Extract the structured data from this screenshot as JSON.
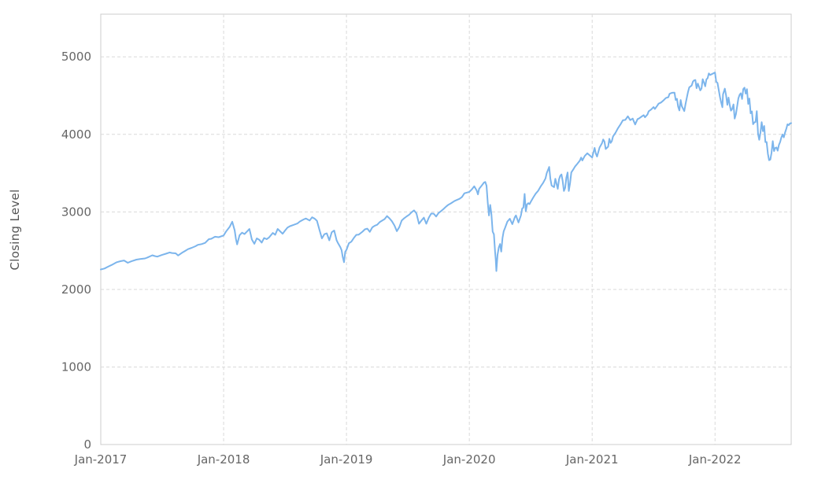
{
  "chart_data": {
    "type": "line",
    "title": "",
    "xlabel": "",
    "ylabel": "Closing Level",
    "legend": "none",
    "grid": "dashed",
    "line_color": "#7cb5ec",
    "axis_text_color": "#666666",
    "grid_color": "#d9d9d9",
    "border_color": "#cccccc",
    "xlim": [
      2017.0,
      2022.62
    ],
    "ylim": [
      0,
      5550
    ],
    "x_tick_values": [
      2017,
      2018,
      2019,
      2020,
      2021,
      2022
    ],
    "x_tick_labels": [
      "Jan-2017",
      "Jan-2018",
      "Jan-2019",
      "Jan-2020",
      "Jan-2021",
      "Jan-2022"
    ],
    "y_tick_values": [
      0,
      1000,
      2000,
      3000,
      4000,
      5000
    ],
    "y_tick_labels": [
      "0",
      "1000",
      "2000",
      "3000",
      "4000",
      "5000"
    ],
    "points": [
      [
        2017.0,
        2258
      ],
      [
        2017.03,
        2270
      ],
      [
        2017.06,
        2294
      ],
      [
        2017.09,
        2316
      ],
      [
        2017.13,
        2351
      ],
      [
        2017.16,
        2364
      ],
      [
        2017.19,
        2373
      ],
      [
        2017.22,
        2344
      ],
      [
        2017.25,
        2363
      ],
      [
        2017.29,
        2384
      ],
      [
        2017.32,
        2391
      ],
      [
        2017.36,
        2400
      ],
      [
        2017.38,
        2412
      ],
      [
        2017.42,
        2440
      ],
      [
        2017.44,
        2430
      ],
      [
        2017.46,
        2423
      ],
      [
        2017.5,
        2446
      ],
      [
        2017.53,
        2460
      ],
      [
        2017.56,
        2477
      ],
      [
        2017.58,
        2470
      ],
      [
        2017.61,
        2466
      ],
      [
        2017.63,
        2438
      ],
      [
        2017.66,
        2472
      ],
      [
        2017.69,
        2500
      ],
      [
        2017.71,
        2519
      ],
      [
        2017.74,
        2537
      ],
      [
        2017.77,
        2557
      ],
      [
        2017.79,
        2575
      ],
      [
        2017.82,
        2584
      ],
      [
        2017.85,
        2600
      ],
      [
        2017.88,
        2648
      ],
      [
        2017.9,
        2653
      ],
      [
        2017.93,
        2680
      ],
      [
        2017.96,
        2674
      ],
      [
        2018.0,
        2696
      ],
      [
        2018.02,
        2748
      ],
      [
        2018.05,
        2810
      ],
      [
        2018.07,
        2873
      ],
      [
        2018.09,
        2762
      ],
      [
        2018.1,
        2650
      ],
      [
        2018.11,
        2581
      ],
      [
        2018.13,
        2699
      ],
      [
        2018.15,
        2732
      ],
      [
        2018.17,
        2714
      ],
      [
        2018.19,
        2747
      ],
      [
        2018.21,
        2780
      ],
      [
        2018.22,
        2712
      ],
      [
        2018.23,
        2644
      ],
      [
        2018.25,
        2588
      ],
      [
        2018.27,
        2658
      ],
      [
        2018.29,
        2641
      ],
      [
        2018.31,
        2604
      ],
      [
        2018.33,
        2663
      ],
      [
        2018.35,
        2648
      ],
      [
        2018.37,
        2670
      ],
      [
        2018.4,
        2728
      ],
      [
        2018.42,
        2705
      ],
      [
        2018.44,
        2780
      ],
      [
        2018.46,
        2750
      ],
      [
        2018.48,
        2718
      ],
      [
        2018.5,
        2760
      ],
      [
        2018.52,
        2798
      ],
      [
        2018.54,
        2816
      ],
      [
        2018.57,
        2833
      ],
      [
        2018.6,
        2850
      ],
      [
        2018.62,
        2875
      ],
      [
        2018.65,
        2902
      ],
      [
        2018.67,
        2915
      ],
      [
        2018.7,
        2889
      ],
      [
        2018.72,
        2930
      ],
      [
        2018.74,
        2914
      ],
      [
        2018.76,
        2886
      ],
      [
        2018.78,
        2768
      ],
      [
        2018.8,
        2658
      ],
      [
        2018.82,
        2712
      ],
      [
        2018.84,
        2723
      ],
      [
        2018.86,
        2633
      ],
      [
        2018.88,
        2737
      ],
      [
        2018.9,
        2760
      ],
      [
        2018.92,
        2633
      ],
      [
        2018.93,
        2600
      ],
      [
        2018.95,
        2546
      ],
      [
        2018.96,
        2506
      ],
      [
        2018.97,
        2416
      ],
      [
        2018.98,
        2351
      ],
      [
        2018.99,
        2486
      ],
      [
        2019.0,
        2510
      ],
      [
        2019.02,
        2596
      ],
      [
        2019.04,
        2616
      ],
      [
        2019.06,
        2664
      ],
      [
        2019.08,
        2704
      ],
      [
        2019.1,
        2707
      ],
      [
        2019.13,
        2745
      ],
      [
        2019.15,
        2775
      ],
      [
        2019.17,
        2784
      ],
      [
        2019.19,
        2743
      ],
      [
        2019.21,
        2800
      ],
      [
        2019.23,
        2822
      ],
      [
        2019.25,
        2834
      ],
      [
        2019.27,
        2867
      ],
      [
        2019.29,
        2888
      ],
      [
        2019.31,
        2907
      ],
      [
        2019.33,
        2946
      ],
      [
        2019.35,
        2917
      ],
      [
        2019.37,
        2880
      ],
      [
        2019.39,
        2826
      ],
      [
        2019.41,
        2752
      ],
      [
        2019.43,
        2803
      ],
      [
        2019.45,
        2890
      ],
      [
        2019.47,
        2918
      ],
      [
        2019.49,
        2942
      ],
      [
        2019.51,
        2964
      ],
      [
        2019.53,
        2995
      ],
      [
        2019.55,
        3020
      ],
      [
        2019.57,
        2980
      ],
      [
        2019.59,
        2847
      ],
      [
        2019.61,
        2889
      ],
      [
        2019.63,
        2926
      ],
      [
        2019.65,
        2847
      ],
      [
        2019.67,
        2926
      ],
      [
        2019.69,
        2979
      ],
      [
        2019.71,
        2977
      ],
      [
        2019.73,
        2940
      ],
      [
        2019.75,
        2986
      ],
      [
        2019.77,
        3010
      ],
      [
        2019.79,
        3038
      ],
      [
        2019.81,
        3067
      ],
      [
        2019.83,
        3093
      ],
      [
        2019.85,
        3110
      ],
      [
        2019.88,
        3141
      ],
      [
        2019.9,
        3154
      ],
      [
        2019.92,
        3169
      ],
      [
        2019.94,
        3192
      ],
      [
        2019.96,
        3240
      ],
      [
        2020.0,
        3258
      ],
      [
        2020.02,
        3289
      ],
      [
        2020.04,
        3330
      ],
      [
        2020.06,
        3276
      ],
      [
        2020.07,
        3226
      ],
      [
        2020.08,
        3298
      ],
      [
        2020.1,
        3338
      ],
      [
        2020.12,
        3380
      ],
      [
        2020.13,
        3386
      ],
      [
        2020.14,
        3338
      ],
      [
        2020.15,
        3116
      ],
      [
        2020.16,
        2954
      ],
      [
        2020.17,
        3090
      ],
      [
        2020.18,
        2972
      ],
      [
        2020.19,
        2746
      ],
      [
        2020.2,
        2711
      ],
      [
        2020.21,
        2480
      ],
      [
        2020.215,
        2386
      ],
      [
        2020.22,
        2237
      ],
      [
        2020.23,
        2447
      ],
      [
        2020.24,
        2542
      ],
      [
        2020.25,
        2585
      ],
      [
        2020.26,
        2488
      ],
      [
        2020.27,
        2663
      ],
      [
        2020.28,
        2750
      ],
      [
        2020.29,
        2790
      ],
      [
        2020.31,
        2875
      ],
      [
        2020.33,
        2912
      ],
      [
        2020.35,
        2842
      ],
      [
        2020.37,
        2930
      ],
      [
        2020.38,
        2955
      ],
      [
        2020.4,
        2863
      ],
      [
        2020.42,
        2955
      ],
      [
        2020.43,
        3044
      ],
      [
        2020.44,
        3055
      ],
      [
        2020.45,
        3232
      ],
      [
        2020.46,
        3009
      ],
      [
        2020.47,
        3098
      ],
      [
        2020.48,
        3113
      ],
      [
        2020.49,
        3100
      ],
      [
        2020.5,
        3130
      ],
      [
        2020.52,
        3185
      ],
      [
        2020.54,
        3235
      ],
      [
        2020.56,
        3271
      ],
      [
        2020.58,
        3327
      ],
      [
        2020.6,
        3373
      ],
      [
        2020.62,
        3431
      ],
      [
        2020.63,
        3500
      ],
      [
        2020.65,
        3580
      ],
      [
        2020.66,
        3427
      ],
      [
        2020.67,
        3340
      ],
      [
        2020.69,
        3319
      ],
      [
        2020.7,
        3427
      ],
      [
        2020.71,
        3363
      ],
      [
        2020.72,
        3298
      ],
      [
        2020.73,
        3419
      ],
      [
        2020.74,
        3465
      ],
      [
        2020.75,
        3483
      ],
      [
        2020.76,
        3400
      ],
      [
        2020.77,
        3270
      ],
      [
        2020.78,
        3310
      ],
      [
        2020.79,
        3443
      ],
      [
        2020.8,
        3509
      ],
      [
        2020.81,
        3270
      ],
      [
        2020.82,
        3369
      ],
      [
        2020.83,
        3509
      ],
      [
        2020.85,
        3557
      ],
      [
        2020.86,
        3585
      ],
      [
        2020.88,
        3622
      ],
      [
        2020.9,
        3663
      ],
      [
        2020.91,
        3700
      ],
      [
        2020.92,
        3663
      ],
      [
        2020.94,
        3722
      ],
      [
        2020.96,
        3756
      ],
      [
        2021.0,
        3701
      ],
      [
        2021.01,
        3768
      ],
      [
        2021.02,
        3825
      ],
      [
        2021.03,
        3750
      ],
      [
        2021.04,
        3714
      ],
      [
        2021.06,
        3830
      ],
      [
        2021.08,
        3886
      ],
      [
        2021.09,
        3934
      ],
      [
        2021.1,
        3906
      ],
      [
        2021.11,
        3811
      ],
      [
        2021.13,
        3841
      ],
      [
        2021.14,
        3943
      ],
      [
        2021.15,
        3889
      ],
      [
        2021.16,
        3913
      ],
      [
        2021.17,
        3973
      ],
      [
        2021.19,
        4020
      ],
      [
        2021.21,
        4080
      ],
      [
        2021.23,
        4128
      ],
      [
        2021.25,
        4181
      ],
      [
        2021.27,
        4186
      ],
      [
        2021.29,
        4233
      ],
      [
        2021.31,
        4183
      ],
      [
        2021.33,
        4204
      ],
      [
        2021.34,
        4163
      ],
      [
        2021.35,
        4127
      ],
      [
        2021.37,
        4197
      ],
      [
        2021.38,
        4204
      ],
      [
        2021.4,
        4227
      ],
      [
        2021.42,
        4247
      ],
      [
        2021.43,
        4220
      ],
      [
        2021.45,
        4255
      ],
      [
        2021.46,
        4298
      ],
      [
        2021.48,
        4320
      ],
      [
        2021.5,
        4352
      ],
      [
        2021.51,
        4327
      ],
      [
        2021.53,
        4370
      ],
      [
        2021.54,
        4395
      ],
      [
        2021.56,
        4411
      ],
      [
        2021.58,
        4437
      ],
      [
        2021.6,
        4468
      ],
      [
        2021.62,
        4480
      ],
      [
        2021.63,
        4523
      ],
      [
        2021.65,
        4536
      ],
      [
        2021.67,
        4537
      ],
      [
        2021.68,
        4443
      ],
      [
        2021.69,
        4458
      ],
      [
        2021.7,
        4357
      ],
      [
        2021.71,
        4308
      ],
      [
        2021.72,
        4443
      ],
      [
        2021.73,
        4363
      ],
      [
        2021.75,
        4300
      ],
      [
        2021.76,
        4391
      ],
      [
        2021.77,
        4471
      ],
      [
        2021.78,
        4544
      ],
      [
        2021.79,
        4605
      ],
      [
        2021.81,
        4630
      ],
      [
        2021.82,
        4680
      ],
      [
        2021.83,
        4697
      ],
      [
        2021.84,
        4701
      ],
      [
        2021.85,
        4595
      ],
      [
        2021.86,
        4655
      ],
      [
        2021.88,
        4567
      ],
      [
        2021.89,
        4591
      ],
      [
        2021.9,
        4712
      ],
      [
        2021.91,
        4669
      ],
      [
        2021.92,
        4620
      ],
      [
        2021.93,
        4709
      ],
      [
        2021.94,
        4725
      ],
      [
        2021.95,
        4786
      ],
      [
        2021.96,
        4766
      ],
      [
        2022.0,
        4797
      ],
      [
        2022.01,
        4677
      ],
      [
        2022.02,
        4663
      ],
      [
        2022.03,
        4577
      ],
      [
        2022.04,
        4483
      ],
      [
        2022.05,
        4410
      ],
      [
        2022.06,
        4350
      ],
      [
        2022.065,
        4516
      ],
      [
        2022.08,
        4589
      ],
      [
        2022.09,
        4504
      ],
      [
        2022.1,
        4380
      ],
      [
        2022.11,
        4475
      ],
      [
        2022.12,
        4374
      ],
      [
        2022.13,
        4306
      ],
      [
        2022.14,
        4328
      ],
      [
        2022.15,
        4386
      ],
      [
        2022.16,
        4204
      ],
      [
        2022.17,
        4260
      ],
      [
        2022.18,
        4358
      ],
      [
        2022.19,
        4463
      ],
      [
        2022.2,
        4511
      ],
      [
        2022.21,
        4530
      ],
      [
        2022.22,
        4456
      ],
      [
        2022.23,
        4583
      ],
      [
        2022.24,
        4602
      ],
      [
        2022.25,
        4525
      ],
      [
        2022.26,
        4583
      ],
      [
        2022.27,
        4392
      ],
      [
        2022.28,
        4462
      ],
      [
        2022.29,
        4272
      ],
      [
        2022.3,
        4296
      ],
      [
        2022.31,
        4131
      ],
      [
        2022.32,
        4155
      ],
      [
        2022.33,
        4158
      ],
      [
        2022.34,
        4300
      ],
      [
        2022.35,
        4008
      ],
      [
        2022.36,
        3930
      ],
      [
        2022.37,
        4024
      ],
      [
        2022.38,
        4158
      ],
      [
        2022.39,
        4040
      ],
      [
        2022.4,
        4108
      ],
      [
        2022.41,
        3900
      ],
      [
        2022.42,
        3901
      ],
      [
        2022.43,
        3750
      ],
      [
        2022.44,
        3667
      ],
      [
        2022.45,
        3675
      ],
      [
        2022.46,
        3760
      ],
      [
        2022.47,
        3912
      ],
      [
        2022.48,
        3785
      ],
      [
        2022.49,
        3825
      ],
      [
        2022.5,
        3831
      ],
      [
        2022.51,
        3790
      ],
      [
        2022.52,
        3863
      ],
      [
        2022.53,
        3902
      ],
      [
        2022.54,
        3959
      ],
      [
        2022.55,
        3999
      ],
      [
        2022.56,
        3961
      ],
      [
        2022.57,
        4023
      ],
      [
        2022.58,
        4072
      ],
      [
        2022.59,
        4130
      ],
      [
        2022.6,
        4118
      ],
      [
        2022.61,
        4140
      ],
      [
        2022.62,
        4145
      ]
    ]
  }
}
